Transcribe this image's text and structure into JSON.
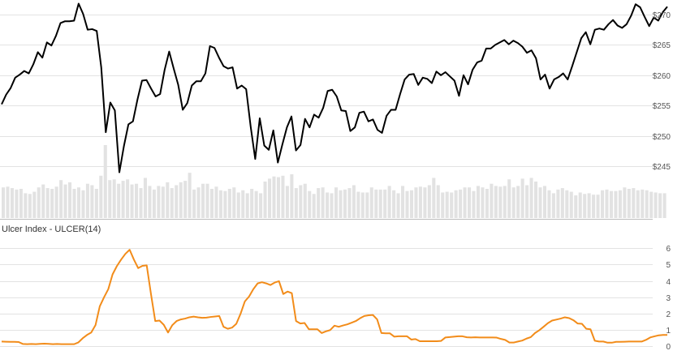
{
  "chart_data": [
    {
      "type": "line",
      "panel": "price",
      "title": "",
      "xlabel": "",
      "ylabel": "",
      "ylim": [
        241,
        272
      ],
      "y_ticks": [
        "$245",
        "$250",
        "$255",
        "$260",
        "$265",
        "$270"
      ],
      "y_tick_values": [
        245,
        250,
        255,
        260,
        265,
        270
      ],
      "grid": true,
      "colors": {
        "price": "#000000",
        "volume": "#e2e2e2"
      },
      "series": [
        {
          "values": [
            255.2,
            256.8,
            257.9,
            259.6,
            260.1,
            260.7,
            260.3,
            261.8,
            263.8,
            262.9,
            265.4,
            264.9,
            266.5,
            268.6,
            268.9,
            268.9,
            269.0,
            271.8,
            270.1,
            267.5,
            267.6,
            267.3,
            261.3,
            250.6,
            255.5,
            254.2,
            244.0,
            248.3,
            251.9,
            252.4,
            256.0,
            259.1,
            259.2,
            257.8,
            256.5,
            256.9,
            260.9,
            263.9,
            261.1,
            258.4,
            254.3,
            255.4,
            258.3,
            259.0,
            259.0,
            260.3,
            264.8,
            264.5,
            262.9,
            261.5,
            261.1,
            261.3,
            257.8,
            258.3,
            257.7,
            251.5,
            246.2,
            252.9,
            248.4,
            247.7,
            250.9,
            245.6,
            248.6,
            251.4,
            253.2,
            247.6,
            248.5,
            252.8,
            251.4,
            253.5,
            253.0,
            254.6,
            257.4,
            257.6,
            256.5,
            254.2,
            254.1,
            250.8,
            251.4,
            253.8,
            254.0,
            252.4,
            252.7,
            251.0,
            250.5,
            253.3,
            254.3,
            254.3,
            256.9,
            259.3,
            260.1,
            260.2,
            258.4,
            259.6,
            259.4,
            258.7,
            260.6,
            260.0,
            260.5,
            259.8,
            259.1,
            256.6,
            260.0,
            258.5,
            260.9,
            262.1,
            262.4,
            264.4,
            264.4,
            265.0,
            265.4,
            265.8,
            265.1,
            265.7,
            265.3,
            264.7,
            263.7,
            264.1,
            262.8,
            259.3,
            260.1,
            257.8,
            259.3,
            259.7,
            260.3,
            259.3,
            261.5,
            263.8,
            266.1,
            267.1,
            265.1,
            267.5,
            267.7,
            267.5,
            268.4,
            269.1,
            268.2,
            267.8,
            268.4,
            269.8,
            271.7,
            271.2,
            269.6,
            268.1,
            269.5,
            269.0,
            270.4,
            271.3
          ]
        }
      ],
      "volume": [
        0.42,
        0.43,
        0.41,
        0.39,
        0.4,
        0.34,
        0.33,
        0.36,
        0.42,
        0.46,
        0.41,
        0.4,
        0.43,
        0.52,
        0.46,
        0.49,
        0.4,
        0.42,
        0.38,
        0.47,
        0.45,
        0.4,
        0.58,
        1.0,
        0.52,
        0.53,
        0.47,
        0.51,
        0.53,
        0.46,
        0.47,
        0.41,
        0.55,
        0.44,
        0.39,
        0.44,
        0.43,
        0.49,
        0.41,
        0.45,
        0.49,
        0.51,
        0.62,
        0.39,
        0.42,
        0.47,
        0.47,
        0.4,
        0.43,
        0.38,
        0.37,
        0.4,
        0.42,
        0.35,
        0.38,
        0.34,
        0.4,
        0.37,
        0.34,
        0.5,
        0.54,
        0.57,
        0.56,
        0.58,
        0.44,
        0.6,
        0.41,
        0.45,
        0.47,
        0.37,
        0.33,
        0.41,
        0.42,
        0.35,
        0.34,
        0.42,
        0.38,
        0.39,
        0.41,
        0.45,
        0.36,
        0.35,
        0.35,
        0.42,
        0.39,
        0.39,
        0.39,
        0.44,
        0.38,
        0.34,
        0.44,
        0.37,
        0.38,
        0.42,
        0.43,
        0.42,
        0.45,
        0.55,
        0.45,
        0.35,
        0.36,
        0.35,
        0.38,
        0.39,
        0.42,
        0.42,
        0.37,
        0.44,
        0.42,
        0.4,
        0.47,
        0.44,
        0.43,
        0.44,
        0.53,
        0.42,
        0.44,
        0.54,
        0.45,
        0.55,
        0.5,
        0.42,
        0.44,
        0.38,
        0.34,
        0.39,
        0.41,
        0.38,
        0.36,
        0.31,
        0.35,
        0.33,
        0.34,
        0.32,
        0.32,
        0.38,
        0.39,
        0.37,
        0.37,
        0.38,
        0.42,
        0.4,
        0.41,
        0.38,
        0.39,
        0.38,
        0.36,
        0.35,
        0.34,
        0.34
      ]
    },
    {
      "type": "line",
      "panel": "indicator",
      "title": "Ulcer Index - ULCER(14)",
      "xlabel": "",
      "ylabel": "",
      "ylim": [
        -0.2,
        6.6
      ],
      "y_ticks": [
        "0",
        "1",
        "2",
        "3",
        "4",
        "5",
        "6"
      ],
      "y_tick_values": [
        0,
        1,
        2,
        3,
        4,
        5,
        6
      ],
      "grid": true,
      "colors": {
        "line": "#f28c1a"
      },
      "series": [
        {
          "values": [
            0.3,
            0.29,
            0.28,
            0.28,
            0.27,
            0.15,
            0.14,
            0.15,
            0.14,
            0.16,
            0.17,
            0.16,
            0.14,
            0.15,
            0.14,
            0.14,
            0.14,
            0.14,
            0.25,
            0.5,
            0.7,
            0.85,
            1.3,
            2.45,
            3.0,
            3.5,
            4.4,
            4.9,
            5.3,
            5.65,
            5.9,
            5.3,
            4.78,
            4.92,
            4.95,
            3.2,
            1.55,
            1.58,
            1.32,
            0.85,
            1.3,
            1.55,
            1.65,
            1.7,
            1.78,
            1.82,
            1.78,
            1.75,
            1.76,
            1.8,
            1.83,
            1.86,
            1.2,
            1.08,
            1.15,
            1.38,
            2.0,
            2.75,
            3.05,
            3.5,
            3.85,
            3.92,
            3.85,
            3.75,
            3.9,
            3.98,
            3.2,
            3.35,
            3.25,
            1.55,
            1.4,
            1.43,
            1.05,
            1.05,
            1.05,
            0.82,
            0.92,
            1.0,
            1.27,
            1.2,
            1.28,
            1.35,
            1.45,
            1.55,
            1.72,
            1.86,
            1.9,
            1.92,
            1.65,
            0.82,
            0.8,
            0.8,
            0.6,
            0.62,
            0.62,
            0.62,
            0.42,
            0.45,
            0.32,
            0.32,
            0.32,
            0.32,
            0.32,
            0.34,
            0.55,
            0.57,
            0.6,
            0.62,
            0.62,
            0.56,
            0.55,
            0.56,
            0.55,
            0.55,
            0.55,
            0.55,
            0.54,
            0.46,
            0.4,
            0.24,
            0.24,
            0.3,
            0.36,
            0.48,
            0.57,
            0.82,
            0.99,
            1.2,
            1.42,
            1.58,
            1.64,
            1.7,
            1.78,
            1.73,
            1.6,
            1.4,
            1.38,
            1.08,
            1.05,
            0.35,
            0.3,
            0.3,
            0.23,
            0.23,
            0.28,
            0.28,
            0.29,
            0.3,
            0.3,
            0.3,
            0.3,
            0.4,
            0.55,
            0.62,
            0.68,
            0.7,
            0.7
          ]
        }
      ]
    }
  ]
}
